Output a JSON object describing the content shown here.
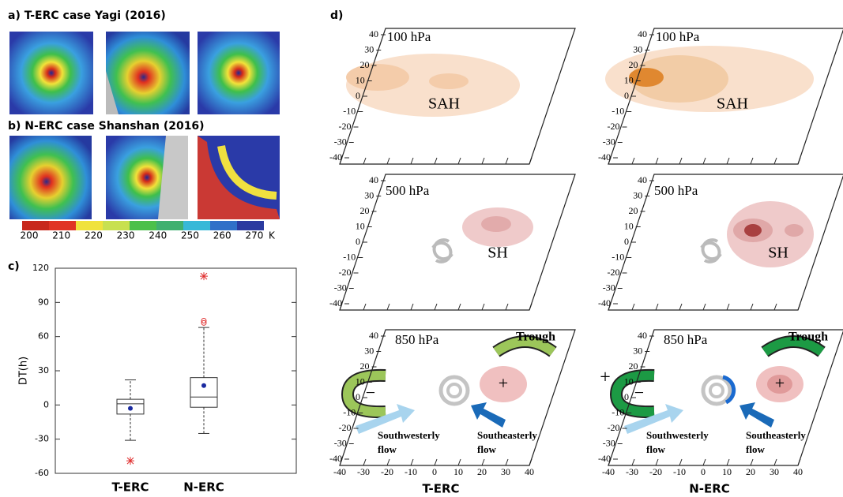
{
  "panel_a": {
    "label": "a) T-ERC case Yagi (2016)"
  },
  "panel_b": {
    "label": "b) N-ERC case Shanshan (2016)"
  },
  "colorbar": {
    "ticks": [
      200,
      210,
      220,
      230,
      240,
      250,
      260,
      270
    ],
    "unit": "K"
  },
  "chart_data": {
    "type": "box",
    "label": "c)",
    "ylabel": "DT(h)",
    "categories": [
      "T-ERC",
      "N-ERC"
    ],
    "boxes": [
      {
        "whisker_low": -31,
        "q1": -8,
        "median": 1,
        "q3": 5,
        "whisker_high": 22,
        "mean": -3,
        "outliers": [],
        "extreme_outliers": [
          -49
        ]
      },
      {
        "whisker_low": -25,
        "q1": -2,
        "median": 7,
        "q3": 24,
        "whisker_high": 68,
        "mean": 17,
        "outliers": [
          74,
          72
        ],
        "extreme_outliers": [
          113
        ]
      }
    ],
    "ylim": [
      -60,
      120
    ],
    "yticks": [
      -60,
      -30,
      0,
      30,
      60,
      90,
      120
    ]
  },
  "panel_d": {
    "label": "d)",
    "y_ticks": [
      40,
      30,
      20,
      10,
      0,
      -10,
      -20,
      -30,
      -40
    ],
    "x_ticks": [
      -40,
      -30,
      -20,
      -10,
      0,
      10,
      20,
      30,
      40
    ],
    "columns": [
      {
        "label": "T-ERC",
        "layers": [
          {
            "level": "100 hPa",
            "system": "SAH"
          },
          {
            "level": "500 hPa",
            "system": "SH"
          },
          {
            "level": "850 hPa",
            "trough": "Trough",
            "plus": "+",
            "minus": "−",
            "southwesterly": [
              "Southwesterly",
              "flow"
            ],
            "southeasterly": [
              "Southeasterly",
              "flow"
            ]
          }
        ]
      },
      {
        "label": "N-ERC",
        "layers": [
          {
            "level": "100 hPa",
            "system": "SAH"
          },
          {
            "level": "500 hPa",
            "system": "SH"
          },
          {
            "level": "850 hPa",
            "trough": "Trough",
            "plus": "+",
            "minus": "−",
            "outer_plus": "+",
            "southwesterly": [
              "Southwesterly",
              "flow"
            ],
            "southeasterly": [
              "Southeasterly",
              "flow"
            ]
          }
        ]
      }
    ]
  }
}
